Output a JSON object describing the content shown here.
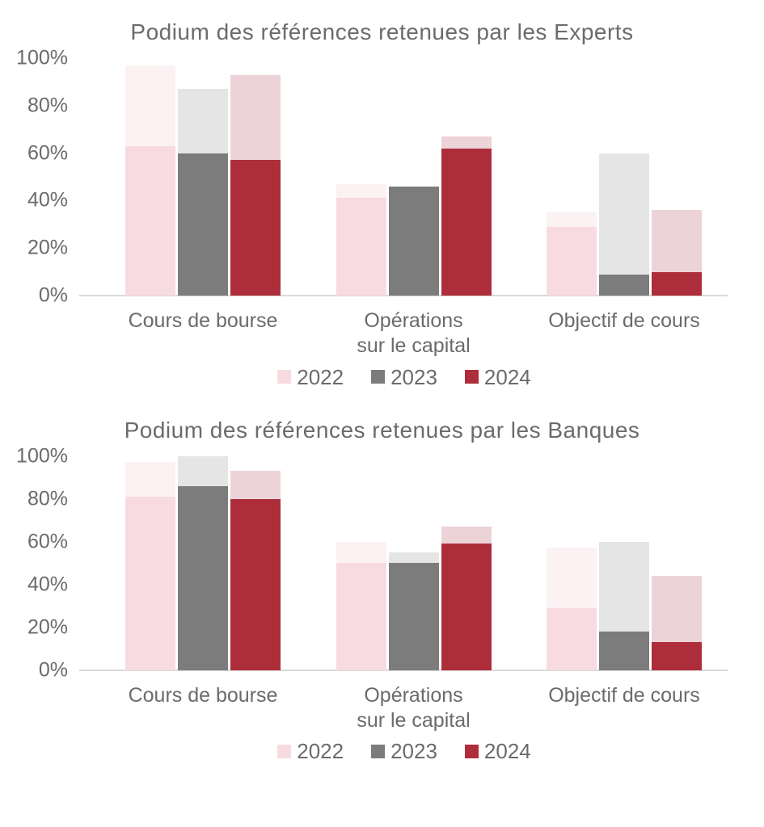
{
  "page": {
    "background": "#ffffff",
    "text_color": "#6d6a6a",
    "axis_line_color": "#d9d9d9"
  },
  "chart_data": [
    {
      "type": "bar",
      "title": "Podium des références retenues par les Experts",
      "categories": [
        "Cours de bourse",
        "Opérations sur le capital",
        "Objectif de cours"
      ],
      "category_lines": [
        [
          "Cours de bourse"
        ],
        [
          "Opérations",
          "sur le capital"
        ],
        [
          "Objectif de cours"
        ]
      ],
      "ylabel": "",
      "xlabel": "",
      "unit": "%",
      "ylim": [
        0,
        100
      ],
      "yticks": [
        "0%",
        "20%",
        "40%",
        "60%",
        "80%",
        "100%"
      ],
      "grid": false,
      "legend_position": "bottom",
      "legend": [
        "2022",
        "2023",
        "2024"
      ],
      "series": [
        {
          "name": "2022",
          "solid_color": "#f7dbe0",
          "light_color": "#fcf1f3",
          "solid_values": [
            63,
            41,
            29
          ],
          "total_values": [
            97,
            47,
            35
          ]
        },
        {
          "name": "2023",
          "solid_color": "#7c7c7c",
          "light_color": "#e6e5e5",
          "solid_values": [
            60,
            46,
            9
          ],
          "total_values": [
            87,
            46,
            60
          ]
        },
        {
          "name": "2024",
          "solid_color": "#ae2d3a",
          "light_color": "#ecd3d8",
          "solid_values": [
            57,
            62,
            10
          ],
          "total_values": [
            93,
            67,
            36
          ]
        }
      ]
    },
    {
      "type": "bar",
      "title": "Podium des références retenues par les Banques",
      "categories": [
        "Cours de bourse",
        "Opérations sur le capital",
        "Objectif de cours"
      ],
      "category_lines": [
        [
          "Cours de bourse"
        ],
        [
          "Opérations",
          "sur le capital"
        ],
        [
          "Objectif de cours"
        ]
      ],
      "ylabel": "",
      "xlabel": "",
      "unit": "%",
      "ylim": [
        0,
        100
      ],
      "yticks": [
        "0%",
        "20%",
        "40%",
        "60%",
        "80%",
        "100%"
      ],
      "grid": false,
      "legend_position": "bottom",
      "legend": [
        "2022",
        "2023",
        "2024"
      ],
      "series": [
        {
          "name": "2022",
          "solid_color": "#f7dbe0",
          "light_color": "#fcf1f3",
          "solid_values": [
            81,
            50,
            29
          ],
          "total_values": [
            97,
            60,
            57
          ]
        },
        {
          "name": "2023",
          "solid_color": "#7c7c7c",
          "light_color": "#e6e5e5",
          "solid_values": [
            86,
            50,
            18
          ],
          "total_values": [
            100,
            55,
            60
          ]
        },
        {
          "name": "2024",
          "solid_color": "#ae2d3a",
          "light_color": "#ecd3d8",
          "solid_values": [
            80,
            59,
            13
          ],
          "total_values": [
            93,
            67,
            44
          ]
        }
      ]
    }
  ]
}
